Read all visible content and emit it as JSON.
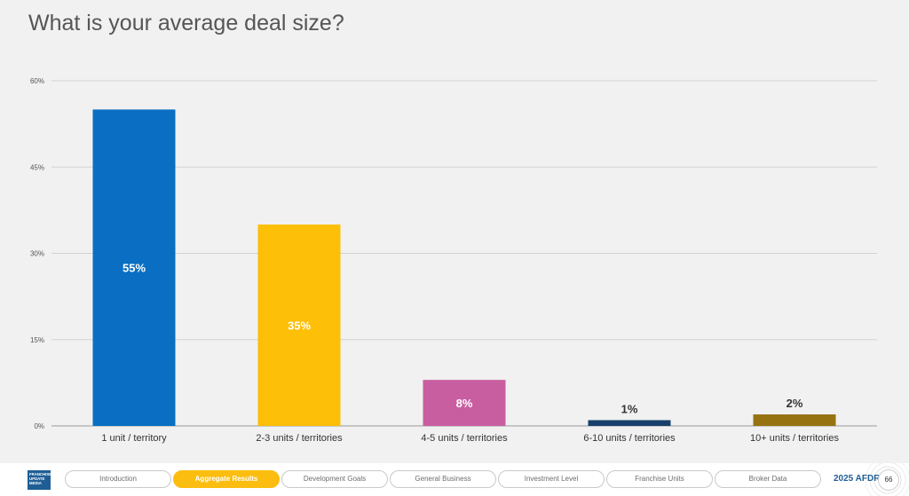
{
  "page_title": "What is your average deal size?",
  "chart_data": {
    "type": "bar",
    "categories": [
      "1 unit / territory",
      "2-3 units / territories",
      "4-5 units / territories",
      "6-10 units / territories",
      "10+ units / territories"
    ],
    "values": [
      55,
      35,
      8,
      1,
      2
    ],
    "value_labels": [
      "55%",
      "35%",
      "8%",
      "1%",
      "2%"
    ],
    "colors": [
      "#0a6fc2",
      "#fdbf07",
      "#c85ea0",
      "#18406b",
      "#967211"
    ],
    "label_colors": [
      "#ffffff",
      "#ffffff",
      "#ffffff",
      "#333333",
      "#333333"
    ],
    "y_ticks": [
      "0%",
      "15%",
      "30%",
      "45%",
      "60%"
    ],
    "y_tick_values": [
      0,
      15,
      30,
      45,
      60
    ],
    "ylim": [
      0,
      60
    ],
    "grid": true,
    "title": "What is your average deal size?",
    "xlabel": "",
    "ylabel": ""
  },
  "footer": {
    "logo_lines": [
      "FRANCHISE",
      "UPDATE",
      "MEDIA"
    ],
    "nav": [
      {
        "label": "Introduction",
        "active": false
      },
      {
        "label": "Aggregate Results",
        "active": true
      },
      {
        "label": "Development Goals",
        "active": false
      },
      {
        "label": "General Business",
        "active": false
      },
      {
        "label": "Investment Level",
        "active": false
      },
      {
        "label": "Franchise Units",
        "active": false
      },
      {
        "label": "Broker Data",
        "active": false
      }
    ],
    "report_label": "2025 AFDR",
    "page_number": "66"
  }
}
